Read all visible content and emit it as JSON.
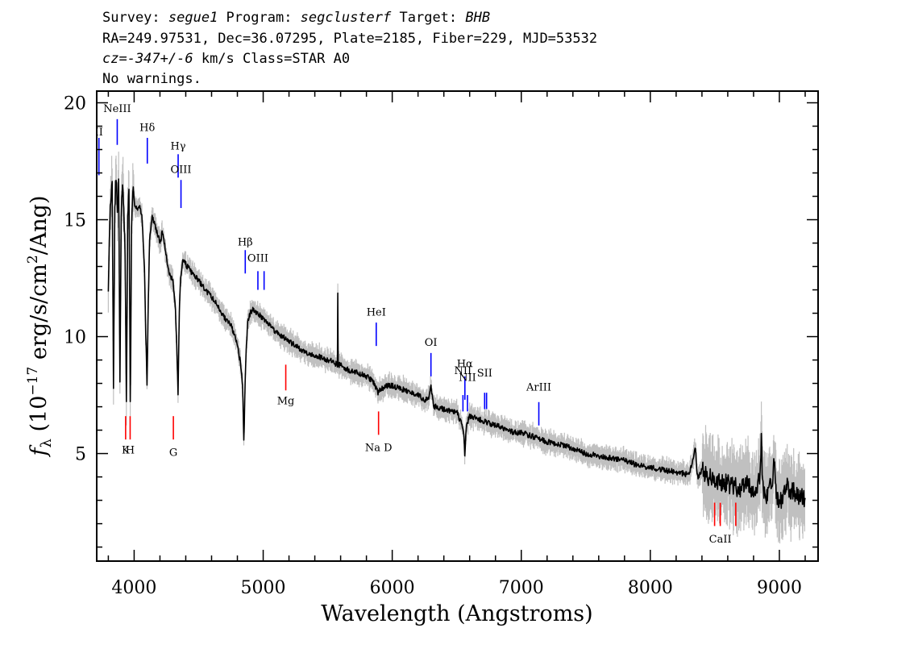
{
  "header": {
    "line1": [
      {
        "text": "Survey: ",
        "italic": false
      },
      {
        "text": "segue1",
        "italic": true
      },
      {
        "text": " Program: ",
        "italic": false
      },
      {
        "text": "segclusterf",
        "italic": true
      },
      {
        "text": " Target: ",
        "italic": false
      },
      {
        "text": "BHB",
        "italic": true
      }
    ],
    "line2": "RA=249.97531, Dec=36.07295, Plate=2185, Fiber=229, MJD=53532",
    "line3": [
      {
        "text": "cz=-347+/-6",
        "italic": true
      },
      {
        "text": " km/s Class=STAR A0",
        "italic": false
      }
    ],
    "line4": "No warnings."
  },
  "chart_data": {
    "type": "line",
    "xlabel": "Wavelength (Angstroms)",
    "ylabel_parts": {
      "f": "f",
      "sub": "λ",
      "a": " (10",
      "exp1": "−17",
      "b": " erg/s/cm",
      "exp2": "2",
      "c": "/Ang)"
    },
    "xlim": [
      3710,
      9300
    ],
    "ylim": [
      0.4,
      20.5
    ],
    "xticks": [
      4000,
      5000,
      6000,
      7000,
      8000,
      9000
    ],
    "yticks": [
      5,
      10,
      15,
      20
    ],
    "colors": {
      "flux": "#000000",
      "noise": "#c0c0c0",
      "emission": "#0000ff",
      "absorption": "#ff0000"
    },
    "flux": {
      "x": [
        3800,
        3815,
        3830,
        3840,
        3850,
        3860,
        3870,
        3880,
        3890,
        3900,
        3910,
        3920,
        3930,
        3940,
        3950,
        3960,
        3970,
        3980,
        3990,
        4000,
        4020,
        4040,
        4060,
        4080,
        4090,
        4100,
        4110,
        4120,
        4140,
        4160,
        4180,
        4200,
        4220,
        4240,
        4260,
        4280,
        4300,
        4320,
        4330,
        4340,
        4350,
        4360,
        4380,
        4400,
        4450,
        4500,
        4550,
        4600,
        4650,
        4700,
        4750,
        4780,
        4800,
        4820,
        4840,
        4850,
        4860,
        4870,
        4880,
        4900,
        4920,
        4950,
        5000,
        5050,
        5100,
        5150,
        5200,
        5250,
        5300,
        5350,
        5400,
        5450,
        5500,
        5550,
        5575,
        5578,
        5581,
        5600,
        5650,
        5700,
        5750,
        5800,
        5850,
        5890,
        5900,
        5950,
        6000,
        6050,
        6100,
        6150,
        6200,
        6250,
        6280,
        6300,
        6320,
        6350,
        6400,
        6450,
        6500,
        6520,
        6540,
        6555,
        6562,
        6570,
        6580,
        6600,
        6650,
        6700,
        6750,
        6800,
        6850,
        6900,
        6950,
        7000,
        7100,
        7200,
        7300,
        7400,
        7500,
        7600,
        7700,
        7800,
        7900,
        8000,
        8100,
        8200,
        8300,
        8350,
        8360,
        8370,
        8400,
        8450,
        8500,
        8550,
        8600,
        8650,
        8700,
        8750,
        8800,
        8850,
        8860,
        8870,
        8900,
        8950,
        8960,
        8970,
        9000,
        9050,
        9100,
        9150,
        9200
      ],
      "y": [
        12.2,
        15.6,
        16.7,
        7.8,
        15.5,
        16.9,
        15.2,
        16.5,
        8.0,
        15.4,
        16.3,
        15.5,
        13.5,
        7.4,
        14.9,
        16.3,
        7.0,
        14.5,
        16.4,
        15.8,
        15.4,
        15.6,
        15.2,
        12.9,
        10.2,
        7.9,
        11.6,
        14.2,
        15.1,
        14.8,
        14.4,
        14.0,
        14.5,
        13.8,
        13.0,
        12.6,
        12.4,
        11.2,
        9.6,
        7.6,
        11.0,
        12.6,
        13.3,
        13.1,
        12.7,
        12.4,
        12.0,
        11.7,
        11.3,
        10.8,
        10.5,
        10.0,
        9.6,
        9.0,
        8.0,
        5.5,
        8.0,
        9.7,
        10.6,
        11.0,
        11.2,
        11.0,
        10.8,
        10.5,
        10.2,
        10.0,
        9.8,
        9.6,
        9.4,
        9.3,
        9.2,
        9.1,
        9.0,
        8.9,
        8.8,
        11.9,
        8.8,
        8.8,
        8.6,
        8.5,
        8.4,
        8.3,
        8.1,
        7.6,
        7.7,
        7.9,
        7.9,
        7.8,
        7.7,
        7.6,
        7.5,
        7.3,
        7.3,
        7.9,
        7.0,
        7.0,
        6.9,
        6.8,
        6.8,
        6.5,
        6.2,
        5.8,
        4.8,
        5.8,
        6.3,
        6.6,
        6.5,
        6.4,
        6.3,
        6.2,
        6.1,
        6.0,
        5.9,
        5.9,
        5.7,
        5.5,
        5.4,
        5.2,
        5.0,
        4.9,
        4.8,
        4.7,
        4.5,
        4.4,
        4.3,
        4.2,
        4.1,
        5.2,
        4.3,
        4.0,
        4.3,
        4.0,
        3.9,
        3.8,
        3.7,
        3.6,
        3.5,
        3.7,
        3.4,
        3.9,
        5.8,
        3.5,
        3.2,
        3.8,
        4.8,
        3.5,
        2.8,
        3.6,
        3.4,
        3.2,
        3.1
      ]
    },
    "lines": [
      {
        "label": "II",
        "x": 3727,
        "y_top": 18.5,
        "y_bottom": 16.9,
        "label_y": 18.6,
        "color": "emission"
      },
      {
        "label": "NeIII",
        "x": 3869,
        "y_top": 19.3,
        "y_bottom": 18.2,
        "label_y": 19.6,
        "color": "emission"
      },
      {
        "label": "Hδ",
        "x": 4102,
        "y_top": 18.5,
        "y_bottom": 17.4,
        "label_y": 18.8,
        "color": "emission"
      },
      {
        "label": "Hγ",
        "x": 4341,
        "y_top": 17.8,
        "y_bottom": 16.8,
        "label_y": 18.0,
        "color": "emission"
      },
      {
        "label": "OIII",
        "x": 4363,
        "y_top": 16.7,
        "y_bottom": 15.5,
        "label_y": 17.0,
        "color": "emission"
      },
      {
        "label": "Hβ",
        "x": 4861,
        "y_top": 13.7,
        "y_bottom": 12.7,
        "label_y": 13.9,
        "color": "emission"
      },
      {
        "label": "OIII",
        "x": 4959,
        "y_top": 12.8,
        "y_bottom": 12.0,
        "label_y": 13.2,
        "color": "emission"
      },
      {
        "label": "",
        "x": 5007,
        "y_top": 12.8,
        "y_bottom": 12.0,
        "label_y": null,
        "color": "emission"
      },
      {
        "label": "HeI",
        "x": 5876,
        "y_top": 10.6,
        "y_bottom": 9.6,
        "label_y": 10.9,
        "color": "emission"
      },
      {
        "label": "OI",
        "x": 6300,
        "y_top": 9.3,
        "y_bottom": 8.3,
        "label_y": 9.6,
        "color": "emission"
      },
      {
        "label": "NII",
        "x": 6548,
        "y_top": 7.5,
        "y_bottom": 6.8,
        "label_y": 8.4,
        "color": "emission"
      },
      {
        "label": "Hα",
        "x": 6563,
        "y_top": 8.3,
        "y_bottom": 7.3,
        "label_y": 8.7,
        "color": "emission"
      },
      {
        "label": "NII",
        "x": 6583,
        "y_top": 7.5,
        "y_bottom": 6.8,
        "label_y": 8.1,
        "color": "emission"
      },
      {
        "label": "SII",
        "x": 6716,
        "y_top": 7.6,
        "y_bottom": 6.9,
        "label_y": 8.3,
        "color": "emission"
      },
      {
        "label": "",
        "x": 6731,
        "y_top": 7.6,
        "y_bottom": 6.9,
        "label_y": null,
        "color": "emission"
      },
      {
        "label": "ArIII",
        "x": 7136,
        "y_top": 7.2,
        "y_bottom": 6.2,
        "label_y": 7.7,
        "color": "emission"
      },
      {
        "label": "K",
        "x": 3934,
        "y_top": 6.6,
        "y_bottom": 5.6,
        "label_y": 5.0,
        "color": "absorption"
      },
      {
        "label": "H",
        "x": 3969,
        "y_top": 6.6,
        "y_bottom": 5.6,
        "label_y": 5.0,
        "color": "absorption"
      },
      {
        "label": "G",
        "x": 4304,
        "y_top": 6.6,
        "y_bottom": 5.6,
        "label_y": 4.9,
        "color": "absorption"
      },
      {
        "label": "Mg",
        "x": 5175,
        "y_top": 8.8,
        "y_bottom": 7.7,
        "label_y": 7.1,
        "color": "absorption"
      },
      {
        "label": "Na D",
        "x": 5894,
        "y_top": 6.8,
        "y_bottom": 5.8,
        "label_y": 5.1,
        "color": "absorption"
      },
      {
        "label": "",
        "x": 8498,
        "y_top": 2.9,
        "y_bottom": 1.9,
        "label_y": null,
        "color": "absorption"
      },
      {
        "label": "CaII",
        "x": 8542,
        "y_top": 2.9,
        "y_bottom": 1.9,
        "label_y": 1.2,
        "color": "absorption"
      },
      {
        "label": "",
        "x": 8662,
        "y_top": 2.9,
        "y_bottom": 1.9,
        "label_y": null,
        "color": "absorption"
      }
    ]
  }
}
